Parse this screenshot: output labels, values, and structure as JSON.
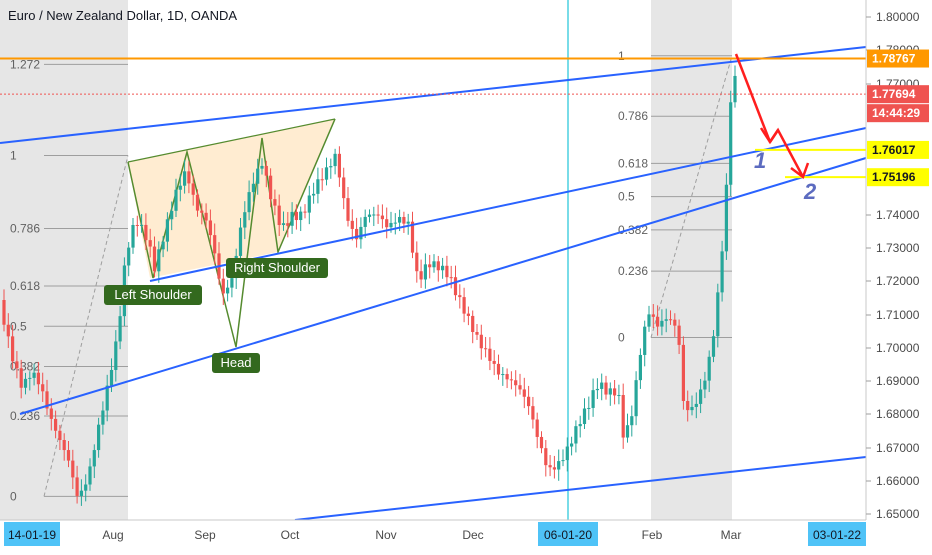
{
  "title": "Euro / New Zealand Dollar, 1D, OANDA",
  "colors": {
    "up": "#26a69a",
    "down": "#ef5350",
    "channel": "#2962ff",
    "resistance": "#ff9800",
    "arrow": "#ff1e1e",
    "target_line": "#ffff00",
    "pattern_fill": "#ffe0b2",
    "pattern_stroke": "#558b2f",
    "label_bg": "#33691e",
    "wave_label": "#5c6bc0",
    "cursor_line": "#4dd0e1"
  },
  "chart_data": {
    "type": "candlestick",
    "symbol": "EUR/NZD",
    "timeframe": "1D",
    "y_axis_ticks": [
      "1.80000",
      "1.78000",
      "1.77000",
      "1.74000",
      "1.73000",
      "1.72000",
      "1.71000",
      "1.70000",
      "1.69000",
      "1.68000",
      "1.67000",
      "1.66000",
      "1.65000"
    ],
    "x_axis_ticks": [
      "Aug",
      "Sep",
      "Oct",
      "Nov",
      "Dec",
      "Feb",
      "Mar"
    ],
    "x_axis_boxes": [
      "14-01-19",
      "06-01-20",
      "03-01-22"
    ],
    "price_labels": [
      {
        "text": "1.78767",
        "value": 1.78767,
        "kind": "resistance"
      },
      {
        "text": "1.77694",
        "value": 1.77694,
        "kind": "last"
      },
      {
        "text": "14:44:29",
        "kind": "countdown"
      },
      {
        "text": "1.76017",
        "value": 1.76017,
        "kind": "target"
      },
      {
        "text": "1.75196",
        "value": 1.75196,
        "kind": "target"
      }
    ],
    "ylim": [
      1.65,
      1.805
    ],
    "fib_left": {
      "levels": [
        "1.272",
        "1",
        "0.786",
        "0.618",
        "0.5",
        "0.382",
        "0.236",
        "0"
      ],
      "values": [
        1.7859,
        1.7585,
        1.7365,
        1.7192,
        1.7071,
        1.695,
        1.6801,
        1.6559
      ]
    },
    "fib_right": {
      "levels": [
        "1",
        "0.786",
        "0.618",
        "0.5",
        "0.382",
        "0.236",
        "0"
      ],
      "values": [
        1.7885,
        1.7703,
        1.7561,
        1.7461,
        1.7361,
        1.7237,
        1.7037
      ]
    },
    "annotations": [
      "Left Shoulder",
      "Head",
      "Right Shoulder",
      "1",
      "2"
    ]
  }
}
